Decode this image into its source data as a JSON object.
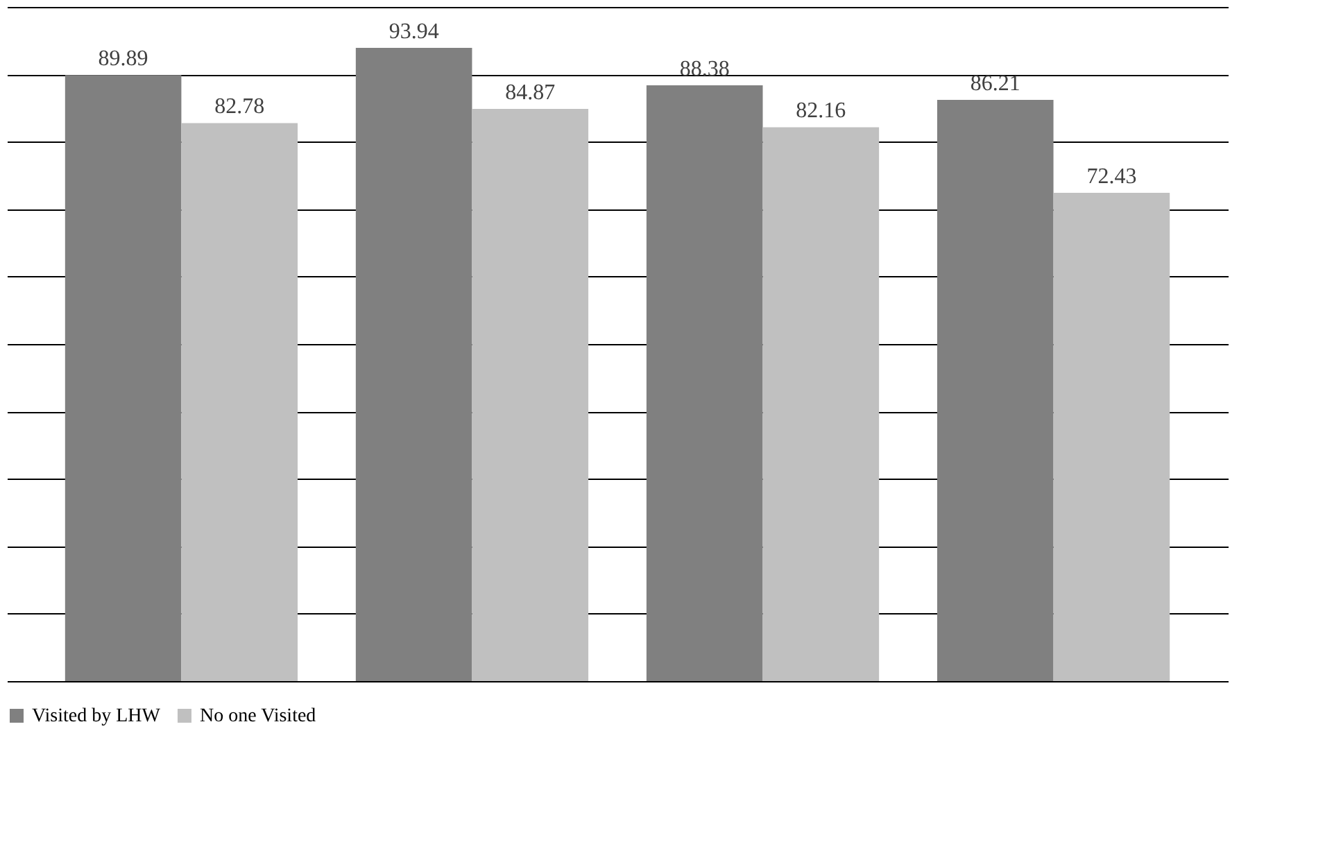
{
  "chart_data": {
    "type": "bar",
    "categories": [
      null,
      null,
      null,
      null
    ],
    "series": [
      {
        "name": "Visited by LHW",
        "color": "#808080",
        "values": [
          89.89,
          93.94,
          88.38,
          86.21
        ]
      },
      {
        "name": "No one Visited",
        "color": "#c0c0c0",
        "values": [
          82.78,
          84.87,
          82.16,
          72.43
        ]
      }
    ],
    "ylim": [
      0,
      100
    ],
    "yticks": [
      {
        "value": 0,
        "label": null
      },
      {
        "value": 10,
        "label": null
      },
      {
        "value": 20,
        "label": null
      },
      {
        "value": 30,
        "label": null
      },
      {
        "value": 40,
        "label": null
      },
      {
        "value": 50,
        "label": null
      },
      {
        "value": 60,
        "label": null
      },
      {
        "value": 70,
        "label": null
      },
      {
        "value": 80,
        "label": null
      },
      {
        "value": 90,
        "label": null
      },
      {
        "value": 100,
        "label": null
      }
    ],
    "tick_labels": false,
    "grid": "y",
    "legend": "bottom",
    "data_labels": true
  }
}
